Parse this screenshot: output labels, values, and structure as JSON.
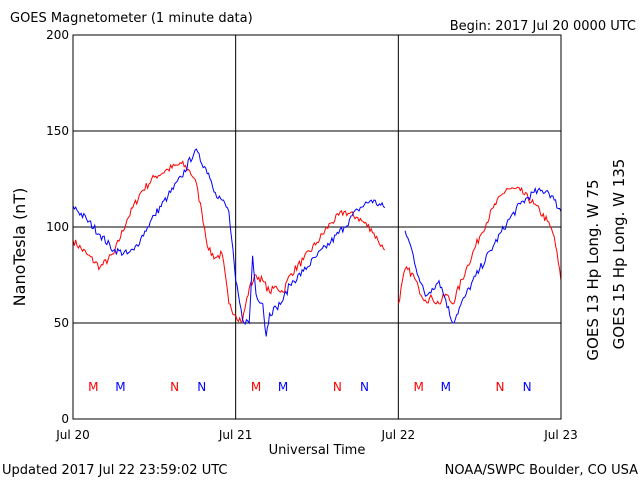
{
  "header": {
    "title": "GOES Magnetometer (1 minute data)",
    "begin": "Begin:  2017 Jul 20 0000 UTC"
  },
  "footer": {
    "updated": "Updated 2017 Jul 22 23:59:02 UTC",
    "source": "NOAA/SWPC Boulder, CO USA"
  },
  "chart_data": {
    "type": "line",
    "xlabel": "Universal Time",
    "ylabel": "NanoTesla (nT)",
    "ylim": [
      0,
      200
    ],
    "xlim_hours": [
      0,
      72
    ],
    "yticks": [
      "0",
      "50",
      "100",
      "150",
      "200"
    ],
    "xticks": [
      {
        "label": "Jul 20",
        "hour": 0
      },
      {
        "label": "Jul 21",
        "hour": 24
      },
      {
        "label": "Jul 22",
        "hour": 48
      },
      {
        "label": "Jul 23",
        "hour": 72
      }
    ],
    "grid": true,
    "colors": {
      "goes13": "#ff0000",
      "goes15": "#0000ff"
    },
    "series": [
      {
        "name": "GOES 13 Hp  Long. W 75",
        "color": "#ff0000",
        "x": [
          0,
          2,
          4,
          6,
          8,
          10,
          12,
          14,
          16,
          17,
          18,
          19,
          20,
          21,
          22,
          23,
          24,
          25,
          25.5,
          26,
          27,
          28,
          29,
          30,
          31,
          32,
          34,
          36,
          38,
          40,
          42,
          44,
          45,
          46,
          47,
          48,
          49,
          50,
          51,
          52,
          53,
          54,
          55,
          56,
          58,
          60,
          62,
          64,
          66,
          68,
          70,
          71,
          72
        ],
        "y": [
          93,
          86,
          79,
          86,
          104,
          118,
          126,
          130,
          133,
          130,
          125,
          108,
          88,
          84,
          86,
          60,
          54,
          51,
          60,
          68,
          75,
          72,
          66,
          69,
          66,
          75,
          83,
          92,
          102,
          108,
          105,
          99,
          93,
          88,
          null,
          60,
          78,
          76,
          68,
          62,
          63,
          60,
          65,
          60,
          78,
          95,
          110,
          120,
          119,
          112,
          103,
          95,
          72
        ]
      },
      {
        "name": "GOES 15 Hp  Long. W 135",
        "color": "#0000ff",
        "x": [
          0,
          2,
          4,
          6,
          8,
          9,
          10,
          11,
          12,
          14,
          16,
          18,
          20,
          21,
          22,
          23,
          24,
          25,
          26,
          26.5,
          27,
          28,
          28.5,
          29,
          30,
          31,
          32,
          34,
          36,
          38,
          40,
          42,
          44,
          46,
          48,
          49,
          50,
          51,
          52,
          53,
          54,
          55,
          56,
          58,
          60,
          62,
          64,
          66,
          68,
          70,
          71,
          72
        ],
        "y": [
          111,
          104,
          96,
          88,
          86,
          88,
          94,
          100,
          106,
          116,
          126,
          140,
          128,
          118,
          114,
          108,
          72,
          52,
          50,
          85,
          65,
          60,
          43,
          55,
          58,
          62,
          70,
          77,
          85,
          92,
          100,
          109,
          114,
          110,
          null,
          98,
          88,
          74,
          64,
          68,
          72,
          62,
          50,
          65,
          78,
          90,
          102,
          112,
          118,
          119,
          114,
          108
        ]
      }
    ],
    "markers": [
      {
        "label": "M",
        "hour": 3.0,
        "color": "#ff0000"
      },
      {
        "label": "M",
        "hour": 7.0,
        "color": "#0000ff"
      },
      {
        "label": "N",
        "hour": 15.0,
        "color": "#ff0000"
      },
      {
        "label": "N",
        "hour": 19.0,
        "color": "#0000ff"
      },
      {
        "label": "M",
        "hour": 27.0,
        "color": "#ff0000"
      },
      {
        "label": "M",
        "hour": 31.0,
        "color": "#0000ff"
      },
      {
        "label": "N",
        "hour": 39.0,
        "color": "#ff0000"
      },
      {
        "label": "N",
        "hour": 43.0,
        "color": "#0000ff"
      },
      {
        "label": "M",
        "hour": 51.0,
        "color": "#ff0000"
      },
      {
        "label": "M",
        "hour": 55.0,
        "color": "#0000ff"
      },
      {
        "label": "N",
        "hour": 63.0,
        "color": "#ff0000"
      },
      {
        "label": "N",
        "hour": 67.0,
        "color": "#0000ff"
      }
    ]
  }
}
